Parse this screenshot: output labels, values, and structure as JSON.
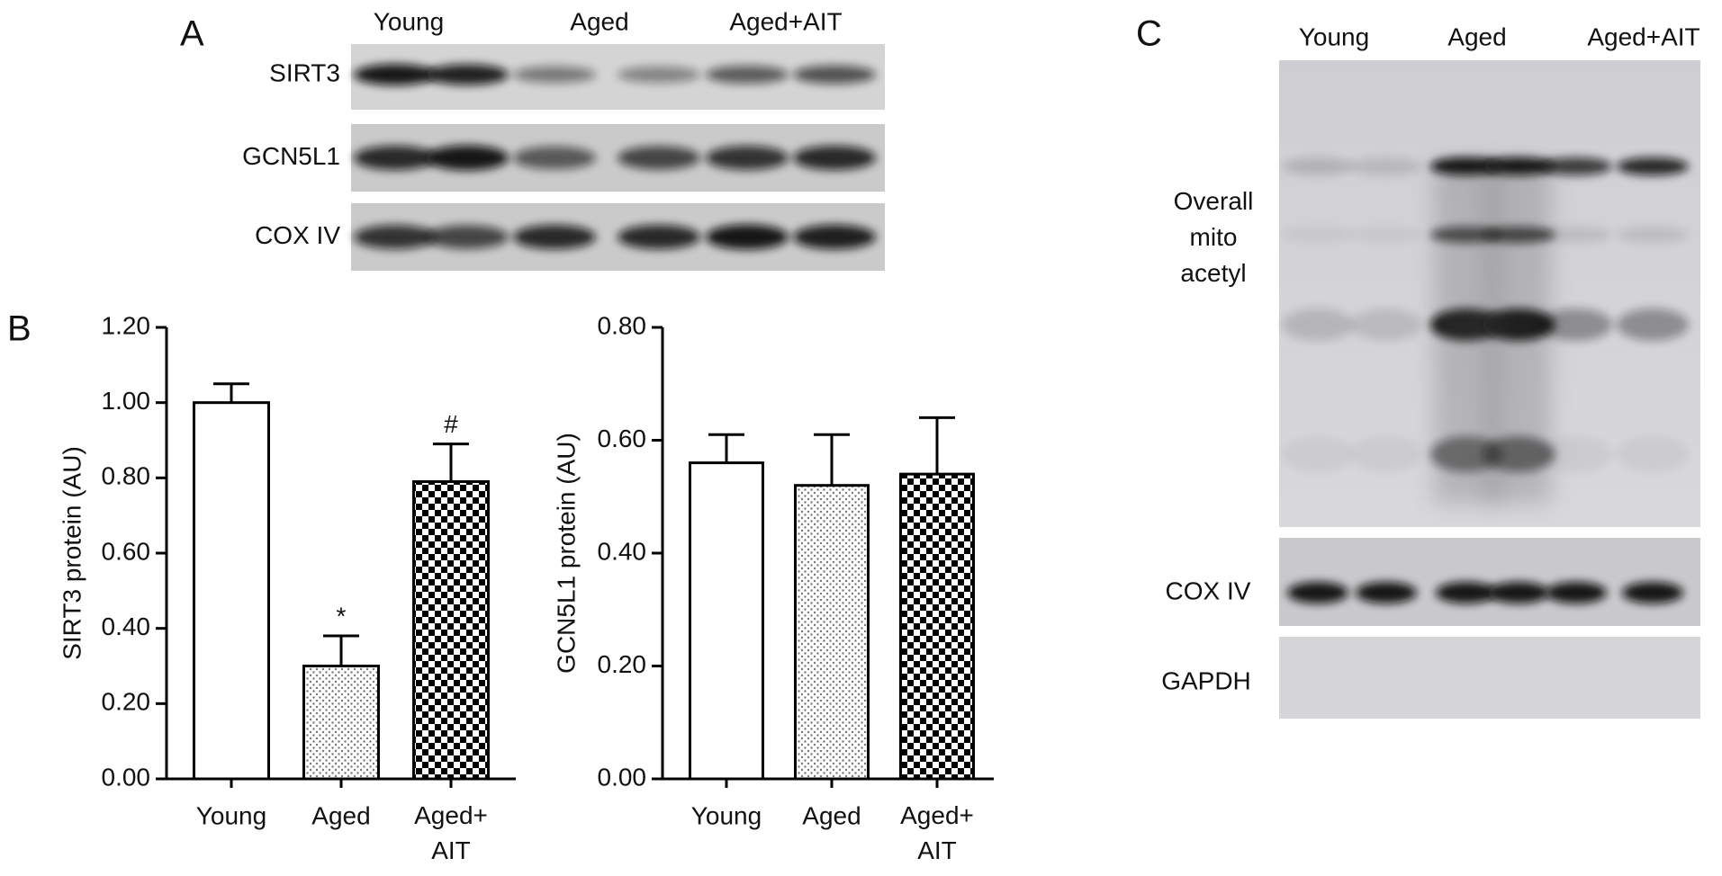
{
  "panels": {
    "a": "A",
    "b": "B",
    "c": "C"
  },
  "blot_a": {
    "lanes": [
      "Young",
      "Aged",
      "Aged+AIT"
    ],
    "rows": [
      "SIRT3",
      "GCN5L1",
      "COX IV"
    ]
  },
  "blot_c": {
    "lanes": [
      "Young",
      "Aged",
      "Aged+AIT"
    ],
    "rows": [
      "Overall\nmito\nacetyl",
      "COX IV",
      "GAPDH"
    ]
  },
  "chart_data": [
    {
      "type": "bar",
      "ylabel": "SIRT3 protein (AU)",
      "categories": [
        "Young",
        "Aged",
        "Aged+\nAIT"
      ],
      "values": [
        1.0,
        0.3,
        0.79
      ],
      "errors": [
        0.05,
        0.08,
        0.1
      ],
      "annotations": [
        null,
        "*",
        "#"
      ],
      "bar_fills": [
        "white",
        "dots",
        "checker"
      ],
      "color": "#000000",
      "ylim": [
        0,
        1.2
      ],
      "yticks": [
        {
          "value": 0,
          "label": "0.00"
        },
        {
          "value": 0.2,
          "label": "0.20"
        },
        {
          "value": 0.4,
          "label": "0.40"
        },
        {
          "value": 0.6,
          "label": "0.60"
        },
        {
          "value": 0.8,
          "label": "0.80"
        },
        {
          "value": 1.0,
          "label": "1.00"
        },
        {
          "value": 1.2,
          "label": "1.20"
        }
      ],
      "grid": false
    },
    {
      "type": "bar",
      "ylabel": "GCN5L1 protein (AU)",
      "categories": [
        "Young",
        "Aged",
        "Aged+\nAIT"
      ],
      "values": [
        0.56,
        0.52,
        0.54
      ],
      "errors": [
        0.05,
        0.09,
        0.1
      ],
      "annotations": [
        null,
        null,
        null
      ],
      "bar_fills": [
        "white",
        "dots",
        "checker"
      ],
      "color": "#000000",
      "ylim": [
        0,
        0.8
      ],
      "yticks": [
        {
          "value": 0,
          "label": "0.00"
        },
        {
          "value": 0.2,
          "label": "0.20"
        },
        {
          "value": 0.4,
          "label": "0.40"
        },
        {
          "value": 0.6,
          "label": "0.60"
        },
        {
          "value": 0.8,
          "label": "0.80"
        }
      ],
      "grid": false
    }
  ]
}
